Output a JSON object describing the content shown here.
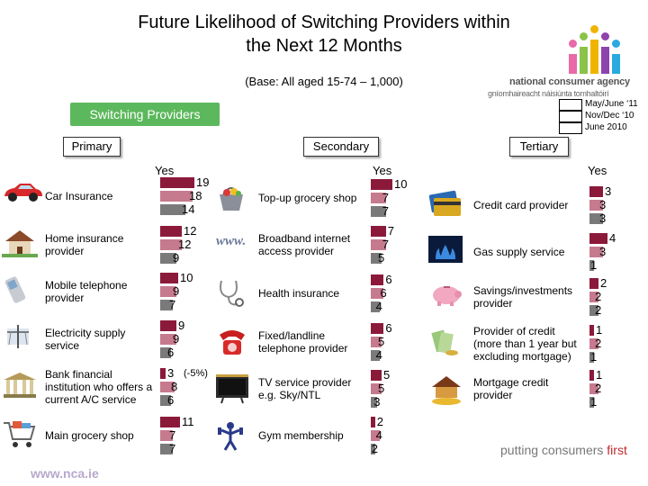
{
  "header": {
    "title_line1": "Future Likelihood of Switching Providers within",
    "title_line2": "the Next 12 Months",
    "base": "(Base: All aged 15-74 – 1,000)"
  },
  "branding": {
    "agency_name": "national consumer agency",
    "agency_irish": "gníomhaireacht náisiúnta tomhaltóirí",
    "slogan_part1": "putting consumers ",
    "slogan_part2": "first",
    "url": "www.nca.ie"
  },
  "legend": [
    "May/June ‘11",
    "Nov/Dec ‘10",
    "June 2010"
  ],
  "banner": "Switching Providers",
  "categories": {
    "primary": "Primary",
    "secondary": "Secondary",
    "tertiary": "Tertiary"
  },
  "yes_label": "Yes",
  "annotation": "(-5%)",
  "colors": {
    "bar_2011": "#8b1a3a",
    "bar_dec10": "#c67a8e",
    "bar_jun10": "#7a7a7a",
    "banner": "#5cb85c"
  },
  "chart_data": [
    {
      "type": "bar",
      "group": "Primary",
      "categories": [
        "Car Insurance",
        "Home insurance provider",
        "Mobile telephone provider",
        "Electricity supply service",
        "Bank financial institution who offers a current A/C service",
        "Main grocery shop"
      ],
      "series": [
        {
          "name": "May/June ‘11",
          "values": [
            19,
            12,
            10,
            9,
            3,
            11
          ]
        },
        {
          "name": "Nov/Dec ‘10",
          "values": [
            18,
            12,
            9,
            9,
            8,
            7
          ]
        },
        {
          "name": "June 2010",
          "values": [
            14,
            9,
            7,
            6,
            6,
            7
          ]
        }
      ],
      "icons": [
        "car-icon",
        "house-icon",
        "mobile-phone-icon",
        "electricity-icon",
        "bank-icon",
        "shopping-trolley-icon"
      ]
    },
    {
      "type": "bar",
      "group": "Secondary",
      "categories": [
        "Top-up grocery shop",
        "Broadband internet access provider",
        "Health insurance",
        "Fixed/landline telephone provider",
        "TV service provider e.g. Sky/NTL",
        "Gym membership"
      ],
      "series": [
        {
          "name": "May/June ‘11",
          "values": [
            10,
            7,
            6,
            6,
            5,
            2
          ]
        },
        {
          "name": "Nov/Dec ‘10",
          "values": [
            7,
            7,
            6,
            5,
            5,
            4
          ]
        },
        {
          "name": "June 2010",
          "values": [
            7,
            5,
            4,
            4,
            3,
            2
          ]
        }
      ],
      "icons": [
        "grocery-basket-icon",
        "www-icon",
        "stethoscope-icon",
        "telephone-icon",
        "television-icon",
        "gym-icon"
      ]
    },
    {
      "type": "bar",
      "group": "Tertiary",
      "categories": [
        "Credit card provider",
        "Gas supply service",
        "Savings/investments provider",
        "Provider of credit (more than 1 year but excluding mortgage)",
        "Mortgage credit provider"
      ],
      "series": [
        {
          "name": "May/June ‘11",
          "values": [
            3,
            4,
            2,
            1,
            1
          ]
        },
        {
          "name": "Nov/Dec ‘10",
          "values": [
            3,
            3,
            2,
            2,
            2
          ]
        },
        {
          "name": "June 2010",
          "values": [
            3,
            1,
            2,
            1,
            1
          ]
        }
      ],
      "icons": [
        "credit-card-icon",
        "gas-flame-icon",
        "piggy-bank-icon",
        "money-icon",
        "house-coins-icon"
      ]
    }
  ]
}
